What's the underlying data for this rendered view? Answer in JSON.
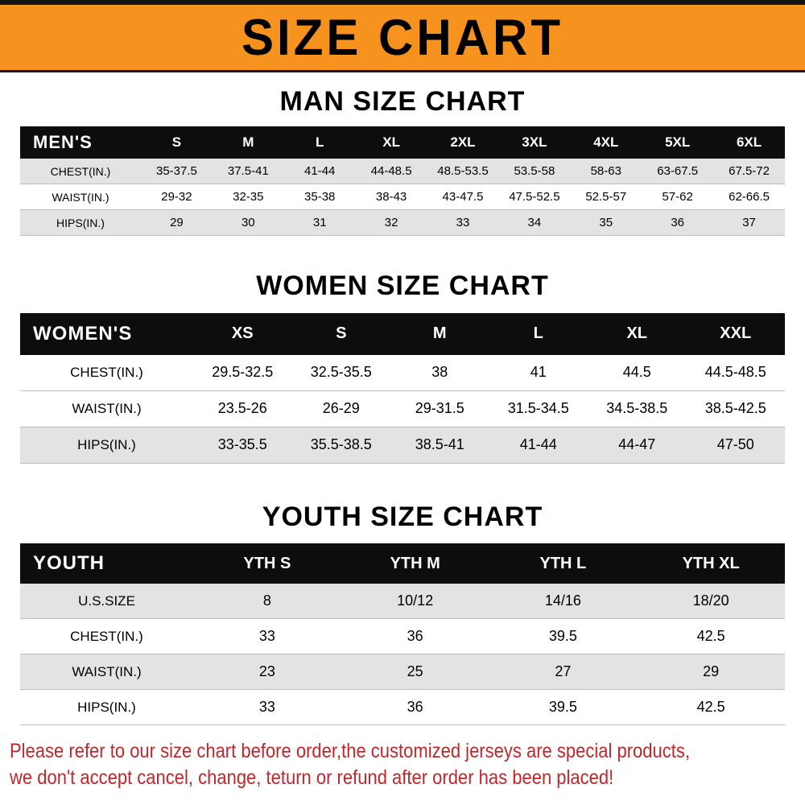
{
  "banner": {
    "title": "SIZE CHART"
  },
  "colors": {
    "banner_orange": "#f6921e",
    "header_black": "#0d0d0d",
    "row_shade": "#e3e3e3",
    "footer_red": "#c0272d"
  },
  "sections": [
    {
      "id": "men",
      "heading": "MAN SIZE CHART",
      "table": {
        "header": [
          "MEN'S",
          "S",
          "M",
          "L",
          "XL",
          "2XL",
          "3XL",
          "4XL",
          "5XL",
          "6XL"
        ],
        "rows": [
          {
            "label": "CHEST(IN.)",
            "shade": true,
            "values": [
              "35-37.5",
              "37.5-41",
              "41-44",
              "44-48.5",
              "48.5-53.5",
              "53.5-58",
              "58-63",
              "63-67.5",
              "67.5-72"
            ]
          },
          {
            "label": "WAIST(IN.)",
            "shade": false,
            "values": [
              "29-32",
              "32-35",
              "35-38",
              "38-43",
              "43-47.5",
              "47.5-52.5",
              "52.5-57",
              "57-62",
              "62-66.5"
            ]
          },
          {
            "label": "HIPS(IN.)",
            "shade": true,
            "values": [
              "29",
              "30",
              "31",
              "32",
              "33",
              "34",
              "35",
              "36",
              "37"
            ]
          }
        ]
      }
    },
    {
      "id": "women",
      "heading": "WOMEN SIZE CHART",
      "table": {
        "header": [
          "WOMEN'S",
          "XS",
          "S",
          "M",
          "L",
          "XL",
          "XXL"
        ],
        "rows": [
          {
            "label": "CHEST(IN.)",
            "shade": false,
            "values": [
              "29.5-32.5",
              "32.5-35.5",
              "38",
              "41",
              "44.5",
              "44.5-48.5"
            ]
          },
          {
            "label": "WAIST(IN.)",
            "shade": false,
            "values": [
              "23.5-26",
              "26-29",
              "29-31.5",
              "31.5-34.5",
              "34.5-38.5",
              "38.5-42.5"
            ]
          },
          {
            "label": "HIPS(IN.)",
            "shade": true,
            "values": [
              "33-35.5",
              "35.5-38.5",
              "38.5-41",
              "41-44",
              "44-47",
              "47-50"
            ]
          }
        ]
      }
    },
    {
      "id": "youth",
      "heading": "YOUTH SIZE CHART",
      "table": {
        "header": [
          "YOUTH",
          "YTH S",
          "YTH M",
          "YTH L",
          "YTH XL"
        ],
        "rows": [
          {
            "label": "U.S.SIZE",
            "shade": true,
            "values": [
              "8",
              "10/12",
              "14/16",
              "18/20"
            ]
          },
          {
            "label": "CHEST(IN.)",
            "shade": false,
            "values": [
              "33",
              "36",
              "39.5",
              "42.5"
            ]
          },
          {
            "label": "WAIST(IN.)",
            "shade": true,
            "values": [
              "23",
              "25",
              "27",
              "29"
            ]
          },
          {
            "label": "HIPS(IN.)",
            "shade": false,
            "values": [
              "33",
              "36",
              "39.5",
              "42.5"
            ]
          }
        ]
      }
    }
  ],
  "footer": {
    "line1": "Please refer to our size chart before order,the customized jerseys are special products,",
    "line2": "we don't accept cancel, change, teturn or refund after order has been placed!"
  }
}
